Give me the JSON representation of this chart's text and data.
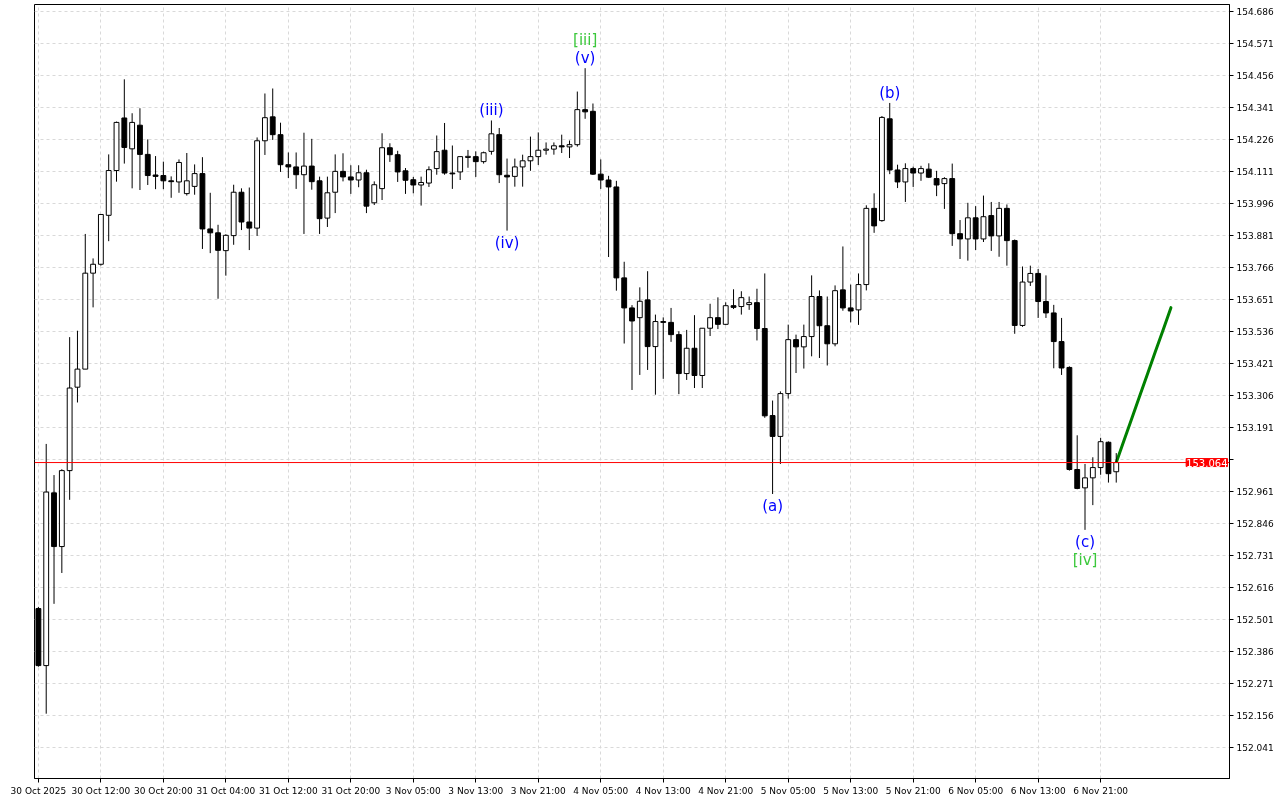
{
  "chart_data": {
    "type": "candlestick",
    "categories": [
      "30 Oct 2025",
      null,
      null,
      null,
      null,
      null,
      null,
      null,
      "30 Oct 12:00",
      null,
      null,
      null,
      null,
      null,
      null,
      null,
      "30 Oct 20:00",
      null,
      null,
      null,
      null,
      null,
      null,
      null,
      "31 Oct 04:00",
      null,
      null,
      null,
      null,
      null,
      null,
      null,
      "31 Oct 12:00",
      null,
      null,
      null,
      null,
      null,
      null,
      null,
      "31 Oct 20:00",
      null,
      null,
      null,
      null,
      null,
      null,
      null,
      "3 Nov 05:00",
      null,
      null,
      null,
      null,
      null,
      null,
      null,
      "3 Nov 13:00",
      null,
      null,
      null,
      null,
      null,
      null,
      null,
      "3 Nov 21:00",
      null,
      null,
      null,
      null,
      null,
      null,
      null,
      "4 Nov 05:00",
      null,
      null,
      null,
      null,
      null,
      null,
      null,
      "4 Nov 13:00",
      null,
      null,
      null,
      null,
      null,
      null,
      null,
      "4 Nov 21:00",
      null,
      null,
      null,
      null,
      null,
      null,
      null,
      "5 Nov 05:00",
      null,
      null,
      null,
      null,
      null,
      null,
      null,
      "5 Nov 13:00",
      null,
      null,
      null,
      null,
      null,
      null,
      null,
      "5 Nov 21:00",
      null,
      null,
      null,
      null,
      null,
      null,
      null,
      "6 Nov 05:00",
      null,
      null,
      null,
      null,
      null,
      null,
      null,
      "6 Nov 13:00",
      null,
      null,
      null,
      null,
      null,
      null,
      null,
      "6 Nov 21:00",
      null,
      null,
      null,
      null,
      null,
      null,
      null,
      null,
      null,
      null,
      null,
      null,
      null,
      null,
      null,
      null
    ],
    "ohlc": [
      [
        152.539,
        152.545,
        152.33,
        152.334
      ],
      [
        152.334,
        153.131,
        152.161,
        152.958
      ],
      [
        152.955,
        153.019,
        152.556,
        152.762
      ],
      [
        152.762,
        153.04,
        152.667,
        153.035
      ],
      [
        153.035,
        153.515,
        152.93,
        153.332
      ],
      [
        153.335,
        153.538,
        153.28,
        153.4
      ],
      [
        153.4,
        153.886,
        153.4,
        153.745
      ],
      [
        153.745,
        153.798,
        153.622,
        153.777
      ],
      [
        153.777,
        153.956,
        153.772,
        153.956
      ],
      [
        153.953,
        154.172,
        153.86,
        154.114
      ],
      [
        154.114,
        154.29,
        154.074,
        154.287
      ],
      [
        154.303,
        154.442,
        154.139,
        154.197
      ],
      [
        154.192,
        154.32,
        154.05,
        154.287
      ],
      [
        154.277,
        154.338,
        154.044,
        154.172
      ],
      [
        154.172,
        154.226,
        154.062,
        154.096
      ],
      [
        154.098,
        154.166,
        154.047,
        154.093
      ],
      [
        154.096,
        154.146,
        154.047,
        154.077
      ],
      [
        154.077,
        154.093,
        154.016,
        154.074
      ],
      [
        154.073,
        154.154,
        154.034,
        154.143
      ],
      [
        154.031,
        154.177,
        154.024,
        154.077
      ],
      [
        154.057,
        154.136,
        154.027,
        154.103
      ],
      [
        154.103,
        154.162,
        153.832,
        153.904
      ],
      [
        153.904,
        154.034,
        153.817,
        153.89
      ],
      [
        153.89,
        153.919,
        153.653,
        153.827
      ],
      [
        153.826,
        153.885,
        153.736,
        153.881
      ],
      [
        153.88,
        154.063,
        153.847,
        154.036
      ],
      [
        154.036,
        154.05,
        153.9,
        153.929
      ],
      [
        153.929,
        154.053,
        153.828,
        153.907
      ],
      [
        153.907,
        154.233,
        153.879,
        154.221
      ],
      [
        154.221,
        154.391,
        154.17,
        154.304
      ],
      [
        154.307,
        154.409,
        154.224,
        154.243
      ],
      [
        154.243,
        154.286,
        154.109,
        154.135
      ],
      [
        154.135,
        154.179,
        154.087,
        154.127
      ],
      [
        154.127,
        154.179,
        154.048,
        154.099
      ],
      [
        154.099,
        154.25,
        153.886,
        154.13
      ],
      [
        154.13,
        154.228,
        154.045,
        154.074
      ],
      [
        154.077,
        154.092,
        153.886,
        153.941
      ],
      [
        153.943,
        154.092,
        153.911,
        154.034
      ],
      [
        154.036,
        154.172,
        153.961,
        154.111
      ],
      [
        154.111,
        154.176,
        154.075,
        154.091
      ],
      [
        154.091,
        154.133,
        154.03,
        154.08
      ],
      [
        154.08,
        154.133,
        154.054,
        154.106
      ],
      [
        154.106,
        154.117,
        153.961,
        153.986
      ],
      [
        153.998,
        154.075,
        153.99,
        154.063
      ],
      [
        154.049,
        154.248,
        154.008,
        154.196
      ],
      [
        154.196,
        154.212,
        154.145,
        154.171
      ],
      [
        154.171,
        154.185,
        154.073,
        154.109
      ],
      [
        154.113,
        154.123,
        154.03,
        154.079
      ],
      [
        154.081,
        154.091,
        154.032,
        154.062
      ],
      [
        154.062,
        154.092,
        153.988,
        154.071
      ],
      [
        154.069,
        154.129,
        154.055,
        154.117
      ],
      [
        154.121,
        154.24,
        154.099,
        154.182
      ],
      [
        154.187,
        154.285,
        154.099,
        154.105
      ],
      [
        154.105,
        154.204,
        154.048,
        154.102
      ],
      [
        154.109,
        154.164,
        154.08,
        154.164
      ],
      [
        154.161,
        154.188,
        154.124,
        154.165
      ],
      [
        154.164,
        154.183,
        154.091,
        154.146
      ],
      [
        154.146,
        154.182,
        154.139,
        154.178
      ],
      [
        154.183,
        154.294,
        154.171,
        154.246
      ],
      [
        154.243,
        154.267,
        154.069,
        154.099
      ],
      [
        154.097,
        154.157,
        153.898,
        154.091
      ],
      [
        154.093,
        154.157,
        154.056,
        154.127
      ],
      [
        154.127,
        154.171,
        154.056,
        154.149
      ],
      [
        154.149,
        154.236,
        154.113,
        154.164
      ],
      [
        154.164,
        154.251,
        154.134,
        154.187
      ],
      [
        154.187,
        154.215,
        154.171,
        154.191
      ],
      [
        154.191,
        154.215,
        154.171,
        154.203
      ],
      [
        154.203,
        154.243,
        154.177,
        154.199
      ],
      [
        154.199,
        154.222,
        154.159,
        154.207
      ],
      [
        154.207,
        154.398,
        154.2,
        154.333
      ],
      [
        154.333,
        154.482,
        154.3,
        154.325
      ],
      [
        154.327,
        154.355,
        154.098,
        154.101
      ],
      [
        154.101,
        154.154,
        154.048,
        154.08
      ],
      [
        154.08,
        154.095,
        153.803,
        154.055
      ],
      [
        154.055,
        154.077,
        153.682,
        153.728
      ],
      [
        153.728,
        153.786,
        153.492,
        153.62
      ],
      [
        153.62,
        153.63,
        153.325,
        153.573
      ],
      [
        153.585,
        153.694,
        153.379,
        153.644
      ],
      [
        153.649,
        153.752,
        153.397,
        153.481
      ],
      [
        153.481,
        153.596,
        153.308,
        153.571
      ],
      [
        153.571,
        153.586,
        153.365,
        153.568
      ],
      [
        153.568,
        153.62,
        153.498,
        153.524
      ],
      [
        153.524,
        153.536,
        153.31,
        153.384
      ],
      [
        153.384,
        153.541,
        153.361,
        153.475
      ],
      [
        153.475,
        153.594,
        153.332,
        153.377
      ],
      [
        153.377,
        153.547,
        153.332,
        153.547
      ],
      [
        153.547,
        153.635,
        153.519,
        153.585
      ],
      [
        153.585,
        153.658,
        153.544,
        153.561
      ],
      [
        153.561,
        153.64,
        153.558,
        153.628
      ],
      [
        153.628,
        153.687,
        153.616,
        153.622
      ],
      [
        153.625,
        153.68,
        153.596,
        153.657
      ],
      [
        153.632,
        153.661,
        153.613,
        153.639
      ],
      [
        153.639,
        153.689,
        153.503,
        153.546
      ],
      [
        153.546,
        153.744,
        153.225,
        153.232
      ],
      [
        153.233,
        153.287,
        152.951,
        153.158
      ],
      [
        153.158,
        153.32,
        153.059,
        153.312
      ],
      [
        153.312,
        153.56,
        153.294,
        153.506
      ],
      [
        153.506,
        153.524,
        153.386,
        153.48
      ],
      [
        153.48,
        153.56,
        153.402,
        153.517
      ],
      [
        153.517,
        153.737,
        153.446,
        153.661
      ],
      [
        153.661,
        153.683,
        153.44,
        153.556
      ],
      [
        153.556,
        153.661,
        153.413,
        153.491
      ],
      [
        153.491,
        153.701,
        153.482,
        153.682
      ],
      [
        153.685,
        153.841,
        153.61,
        153.62
      ],
      [
        153.62,
        153.704,
        153.568,
        153.609
      ],
      [
        153.613,
        153.744,
        153.559,
        153.704
      ],
      [
        153.704,
        153.989,
        153.683,
        153.978
      ],
      [
        153.978,
        154.032,
        153.89,
        153.915
      ],
      [
        153.934,
        154.31,
        153.93,
        154.305
      ],
      [
        154.3,
        154.357,
        154.101,
        154.116
      ],
      [
        154.116,
        154.135,
        154.051,
        154.073
      ],
      [
        154.073,
        154.14,
        154.001,
        154.121
      ],
      [
        154.121,
        154.128,
        154.055,
        154.105
      ],
      [
        154.105,
        154.131,
        154.077,
        154.121
      ],
      [
        154.119,
        154.14,
        154.087,
        154.09
      ],
      [
        154.085,
        154.113,
        154.022,
        154.062
      ],
      [
        154.067,
        154.09,
        153.976,
        154.085
      ],
      [
        154.085,
        154.139,
        153.843,
        153.887
      ],
      [
        153.887,
        153.936,
        153.796,
        153.868
      ],
      [
        153.868,
        153.998,
        153.79,
        153.944
      ],
      [
        153.944,
        153.986,
        153.828,
        153.868
      ],
      [
        153.868,
        154.024,
        153.857,
        153.948
      ],
      [
        153.952,
        154.001,
        153.825,
        153.879
      ],
      [
        153.879,
        154.001,
        153.804,
        153.978
      ],
      [
        153.978,
        153.992,
        153.772,
        153.862
      ],
      [
        153.862,
        153.866,
        153.527,
        153.557
      ],
      [
        153.557,
        153.769,
        153.552,
        153.713
      ],
      [
        153.713,
        153.772,
        153.699,
        153.744
      ],
      [
        153.744,
        153.76,
        153.584,
        153.643
      ],
      [
        153.643,
        153.737,
        153.584,
        153.602
      ],
      [
        153.602,
        153.631,
        153.403,
        153.499
      ],
      [
        153.499,
        153.584,
        153.379,
        153.404
      ],
      [
        153.406,
        153.41,
        153.035,
        153.039
      ],
      [
        153.039,
        153.162,
        152.968,
        152.971
      ],
      [
        152.973,
        153.059,
        152.822,
        153.009
      ],
      [
        153.009,
        153.083,
        152.911,
        153.046
      ],
      [
        153.046,
        153.153,
        153.02,
        153.139
      ],
      [
        153.137,
        153.14,
        152.992,
        153.024
      ],
      [
        153.031,
        153.098,
        152.992,
        153.064
      ],
      null,
      null,
      null,
      null,
      null,
      null,
      null,
      null,
      null,
      null,
      null,
      null,
      null,
      null
    ],
    "series": [
      {
        "type": "line",
        "color": "#008000",
        "values": [
          null,
          null,
          null,
          null,
          null,
          null,
          null,
          null,
          null,
          null,
          null,
          null,
          null,
          null,
          null,
          null,
          null,
          null,
          null,
          null,
          null,
          null,
          null,
          null,
          null,
          null,
          null,
          null,
          null,
          null,
          null,
          null,
          null,
          null,
          null,
          null,
          null,
          null,
          null,
          null,
          null,
          null,
          null,
          null,
          null,
          null,
          null,
          null,
          null,
          null,
          null,
          null,
          null,
          null,
          null,
          null,
          null,
          null,
          null,
          null,
          null,
          null,
          null,
          null,
          null,
          null,
          null,
          null,
          null,
          null,
          null,
          null,
          null,
          null,
          null,
          null,
          null,
          null,
          null,
          null,
          null,
          null,
          null,
          null,
          null,
          null,
          null,
          null,
          null,
          null,
          null,
          null,
          null,
          null,
          null,
          null,
          null,
          null,
          null,
          null,
          null,
          null,
          null,
          null,
          null,
          null,
          null,
          null,
          null,
          null,
          null,
          null,
          null,
          null,
          null,
          null,
          null,
          null,
          null,
          null,
          null,
          null,
          null,
          null,
          null,
          null,
          null,
          null,
          null,
          null,
          null,
          null,
          null,
          null,
          null,
          null,
          null,
          null,
          153.064,
          153.144,
          153.223,
          153.303,
          153.382,
          153.462,
          153.541,
          153.621,
          null,
          null,
          null,
          null,
          null,
          null,
          null
        ]
      }
    ],
    "ylim": [
      151.928,
      154.711
    ],
    "yticks": [
      152.041,
      152.156,
      152.271,
      152.386,
      152.501,
      152.616,
      152.731,
      152.846,
      152.961,
      {
        "value": 153.076,
        "label": null
      },
      153.191,
      153.306,
      153.421,
      153.536,
      153.651,
      153.766,
      153.881,
      153.996,
      154.111,
      154.226,
      154.341,
      154.456,
      154.571,
      154.686
    ],
    "ref_lines": [
      {
        "axis": "y",
        "value": 153.064,
        "label": "153.064",
        "color": "#ff0000"
      }
    ],
    "annotations": [
      {
        "text": "(v)",
        "y": 154.482
      },
      {
        "text": "[iii]",
        "y": 154.482
      },
      {
        "text": "(iii)",
        "y": 154.294
      },
      {
        "text": "(iv)",
        "y": 153.898
      },
      {
        "text": "(a)",
        "y": 152.951
      },
      {
        "text": "(b)",
        "y": 154.357
      },
      {
        "text": "(c)",
        "y": 152.822
      },
      {
        "text": "[iv]",
        "y": 152.822
      }
    ],
    "grid": true
  }
}
